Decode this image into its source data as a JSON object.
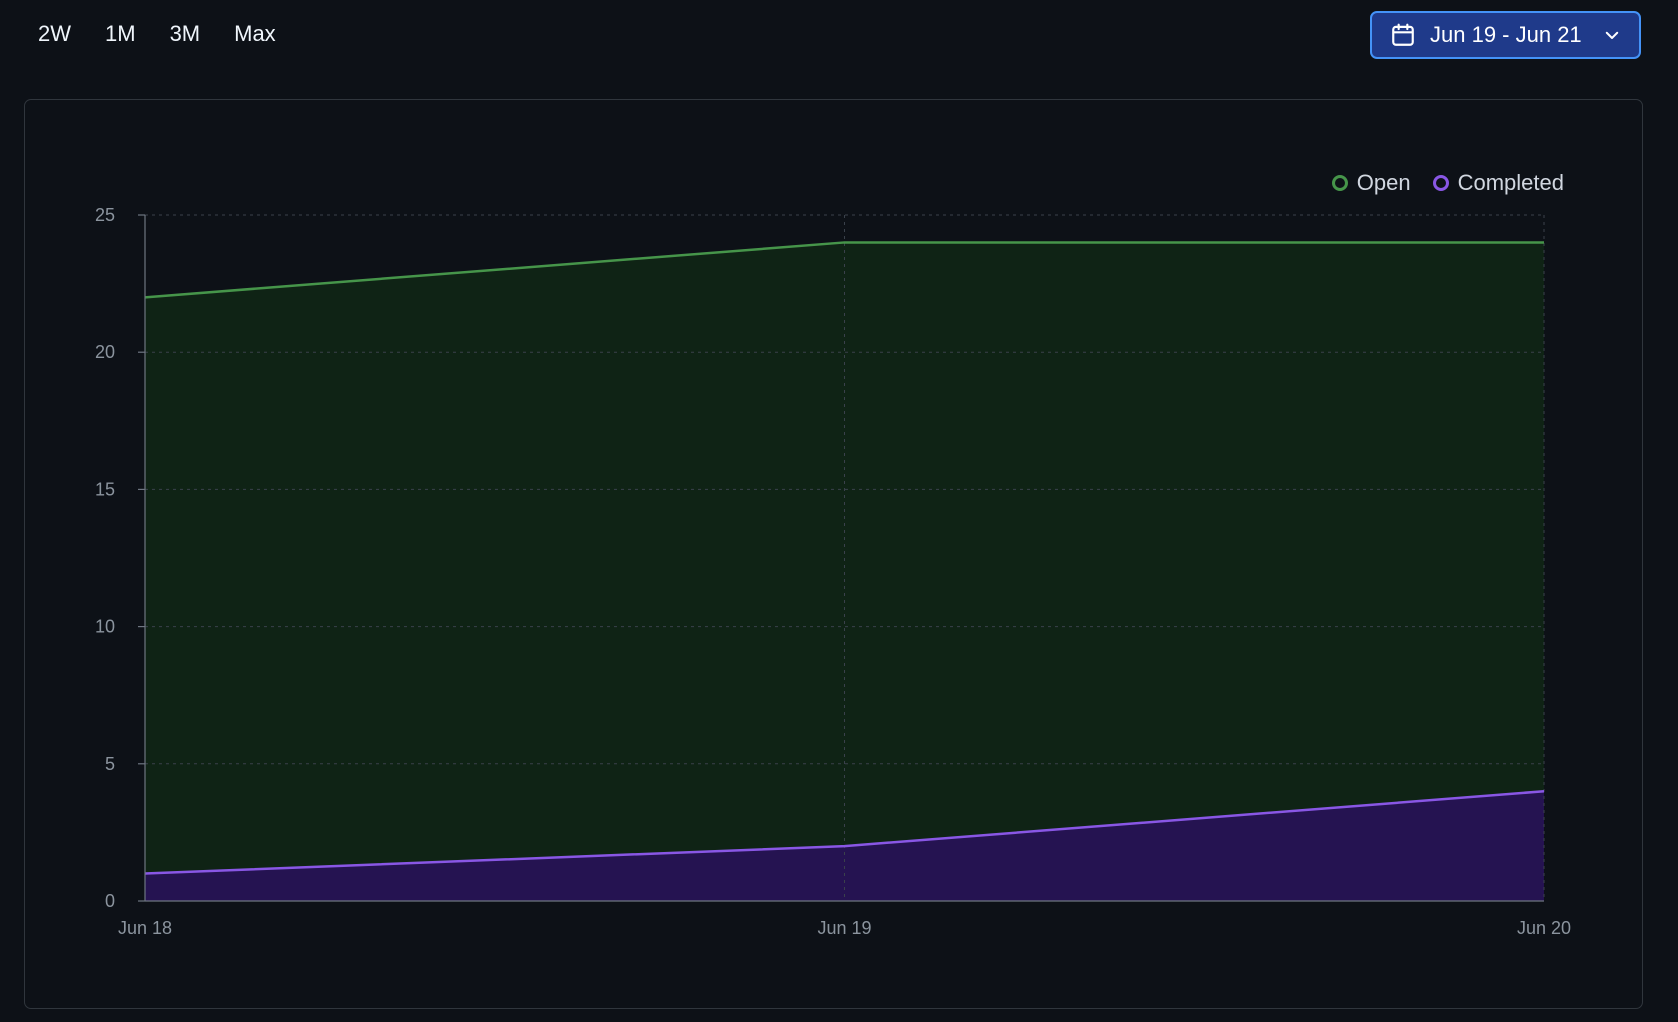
{
  "range_tabs": [
    "2W",
    "1M",
    "3M",
    "Max"
  ],
  "date_picker": {
    "label": "Jun 19 - Jun 21",
    "icon": "calendar-icon",
    "chevron": "chevron-down-icon"
  },
  "colors": {
    "background": "#0d1117",
    "open_line": "#46954a",
    "open_fill": "#0f2315",
    "completed_line": "#8957e5",
    "completed_fill": "#251351",
    "grid": "#30363d",
    "accent": "#4493f8"
  },
  "chart_data": {
    "type": "area",
    "x": [
      "Jun 18",
      "Jun 19",
      "Jun 20"
    ],
    "ylim": [
      0,
      25
    ],
    "yticks": [
      0,
      5,
      10,
      15,
      20,
      25
    ],
    "grid": true,
    "legend": "top-right",
    "series": [
      {
        "name": "Open",
        "values": [
          22,
          24,
          24
        ],
        "color": "#46954a",
        "fill": "#0f2315"
      },
      {
        "name": "Completed",
        "values": [
          1,
          2,
          4
        ],
        "color": "#8957e5",
        "fill": "#251351"
      }
    ]
  }
}
